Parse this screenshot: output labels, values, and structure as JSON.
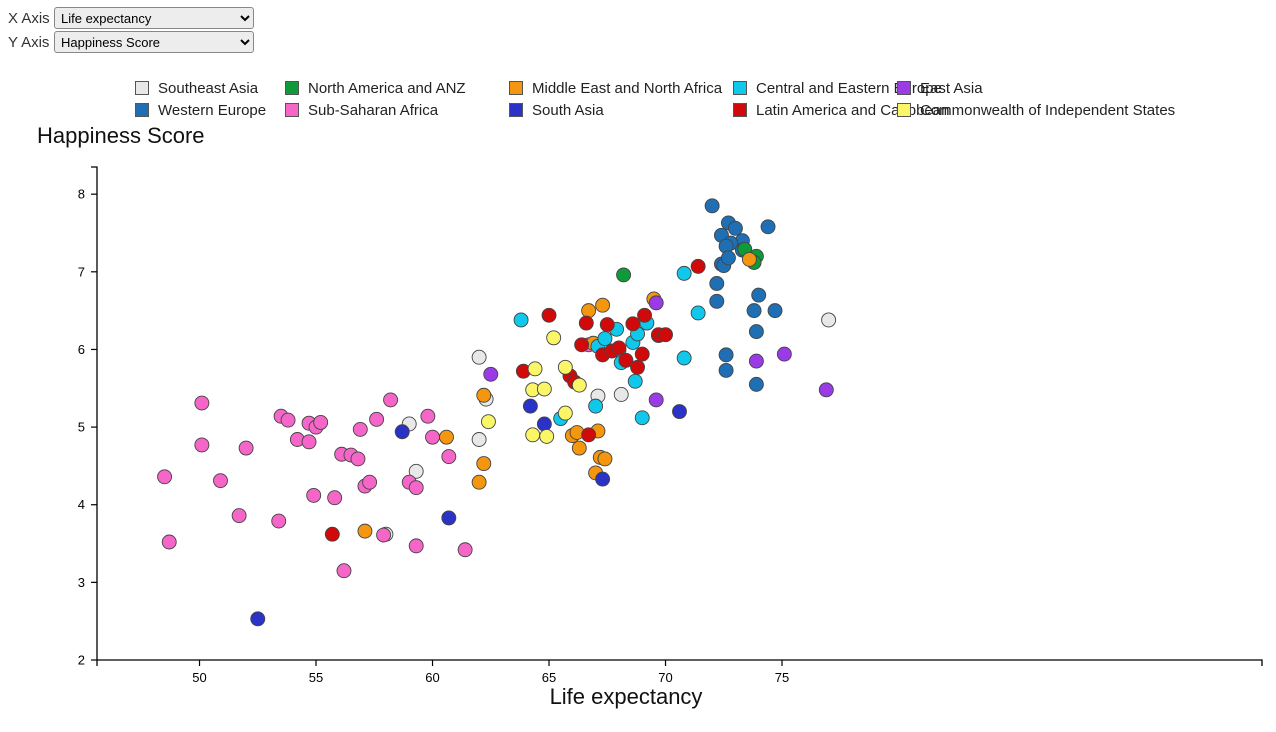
{
  "controls": {
    "x_label": "X Axis",
    "y_label": "Y Axis",
    "x_selected": "Life expectancy",
    "y_selected": "Happiness Score"
  },
  "legend": {
    "items": [
      {
        "label": "Southeast Asia",
        "color": "#e8e8e8"
      },
      {
        "label": "Western Europe",
        "color": "#1f6fb5"
      },
      {
        "label": "North America and ANZ",
        "color": "#0f9a3a"
      },
      {
        "label": "Sub-Saharan Africa",
        "color": "#f566c8"
      },
      {
        "label": "Middle East and North Africa",
        "color": "#f5960f"
      },
      {
        "label": "South Asia",
        "color": "#2a32c8"
      },
      {
        "label": "Central and Eastern Europe",
        "color": "#10c8eb"
      },
      {
        "label": "Latin America and Caribbean",
        "color": "#d00a0a"
      },
      {
        "label": "East Asia",
        "color": "#9b3be8"
      },
      {
        "label": "Commonwealth of Independent States",
        "color": "#fbf568"
      }
    ]
  },
  "chart_data": {
    "type": "scatter",
    "title": "",
    "xlabel": "Life expectancy",
    "ylabel": "Happiness Score",
    "xlim": [
      45.6,
      95.6
    ],
    "ylim": [
      2,
      8.35
    ],
    "xticks": [
      50,
      55,
      60,
      65,
      70,
      75
    ],
    "yticks": [
      2,
      3,
      4,
      5,
      6,
      7,
      8
    ],
    "grid": false,
    "legend_position": "top",
    "series": [
      {
        "name": "Southeast Asia",
        "color": "#e8e8e8",
        "points": [
          [
            62.0,
            5.9
          ],
          [
            62.3,
            5.36
          ],
          [
            62.0,
            4.84
          ],
          [
            59.0,
            5.04
          ],
          [
            59.3,
            4.43
          ],
          [
            67.1,
            5.4
          ],
          [
            68.1,
            5.42
          ],
          [
            77.0,
            6.38
          ],
          [
            69.7,
            6.18
          ],
          [
            58.0,
            3.62
          ]
        ]
      },
      {
        "name": "Western Europe",
        "color": "#1f6fb5",
        "points": [
          [
            72.0,
            7.85
          ],
          [
            72.7,
            7.63
          ],
          [
            73.0,
            7.56
          ],
          [
            74.4,
            7.58
          ],
          [
            72.4,
            7.47
          ],
          [
            73.3,
            7.4
          ],
          [
            72.8,
            7.37
          ],
          [
            72.6,
            7.33
          ],
          [
            73.3,
            7.28
          ],
          [
            72.4,
            7.1
          ],
          [
            72.5,
            7.08
          ],
          [
            72.2,
            6.85
          ],
          [
            74.0,
            6.7
          ],
          [
            72.2,
            6.62
          ],
          [
            73.8,
            6.5
          ],
          [
            74.7,
            6.5
          ],
          [
            73.9,
            6.23
          ],
          [
            72.6,
            5.93
          ],
          [
            72.6,
            5.73
          ],
          [
            73.9,
            5.55
          ],
          [
            72.7,
            7.18
          ]
        ]
      },
      {
        "name": "North America and ANZ",
        "color": "#0f9a3a",
        "points": [
          [
            73.4,
            7.29
          ],
          [
            73.9,
            7.2
          ],
          [
            73.8,
            7.12
          ],
          [
            68.2,
            6.96
          ]
        ]
      },
      {
        "name": "Sub-Saharan Africa",
        "color": "#f566c8",
        "points": [
          [
            48.5,
            4.36
          ],
          [
            48.7,
            3.52
          ],
          [
            50.1,
            5.31
          ],
          [
            50.1,
            4.77
          ],
          [
            50.9,
            4.31
          ],
          [
            51.7,
            3.86
          ],
          [
            52.0,
            4.73
          ],
          [
            53.4,
            3.79
          ],
          [
            53.5,
            5.14
          ],
          [
            53.8,
            5.09
          ],
          [
            54.2,
            4.84
          ],
          [
            54.7,
            5.05
          ],
          [
            54.7,
            4.81
          ],
          [
            55.0,
            5.0
          ],
          [
            55.2,
            5.06
          ],
          [
            54.9,
            4.12
          ],
          [
            55.8,
            4.09
          ],
          [
            56.1,
            4.65
          ],
          [
            56.5,
            4.64
          ],
          [
            56.8,
            4.59
          ],
          [
            56.9,
            4.97
          ],
          [
            57.1,
            4.24
          ],
          [
            57.3,
            4.29
          ],
          [
            57.6,
            5.1
          ],
          [
            58.2,
            5.35
          ],
          [
            56.2,
            3.15
          ],
          [
            57.9,
            3.61
          ],
          [
            59.0,
            4.29
          ],
          [
            59.3,
            4.22
          ],
          [
            59.3,
            3.47
          ],
          [
            59.8,
            5.14
          ],
          [
            60.0,
            4.87
          ],
          [
            60.7,
            4.62
          ],
          [
            61.4,
            3.42
          ],
          [
            66.7,
            6.06
          ]
        ]
      },
      {
        "name": "Middle East and North Africa",
        "color": "#f5960f",
        "points": [
          [
            57.1,
            3.66
          ],
          [
            60.6,
            4.87
          ],
          [
            62.2,
            5.41
          ],
          [
            62.2,
            4.53
          ],
          [
            62.0,
            4.29
          ],
          [
            66.0,
            4.89
          ],
          [
            66.2,
            4.93
          ],
          [
            66.3,
            4.73
          ],
          [
            67.1,
            4.95
          ],
          [
            67.0,
            4.41
          ],
          [
            67.2,
            4.61
          ],
          [
            67.4,
            4.59
          ],
          [
            66.7,
            6.5
          ],
          [
            67.3,
            6.57
          ],
          [
            66.9,
            6.08
          ],
          [
            69.5,
            6.65
          ],
          [
            73.6,
            7.16
          ]
        ]
      },
      {
        "name": "South Asia",
        "color": "#2a32c8",
        "points": [
          [
            52.5,
            2.53
          ],
          [
            58.7,
            4.94
          ],
          [
            60.7,
            3.83
          ],
          [
            64.2,
            5.27
          ],
          [
            64.8,
            5.04
          ],
          [
            67.3,
            4.33
          ],
          [
            70.6,
            5.2
          ]
        ]
      },
      {
        "name": "Central and Eastern Europe",
        "color": "#10c8eb",
        "points": [
          [
            63.8,
            6.38
          ],
          [
            65.5,
            5.11
          ],
          [
            67.0,
            5.27
          ],
          [
            67.1,
            6.04
          ],
          [
            67.4,
            6.14
          ],
          [
            67.9,
            6.26
          ],
          [
            68.0,
            5.99
          ],
          [
            68.1,
            5.83
          ],
          [
            68.6,
            6.09
          ],
          [
            68.7,
            5.59
          ],
          [
            68.8,
            6.2
          ],
          [
            69.2,
            6.34
          ],
          [
            69.0,
            5.12
          ],
          [
            69.7,
            6.18
          ],
          [
            70.8,
            6.98
          ],
          [
            71.4,
            6.47
          ],
          [
            70.8,
            5.89
          ]
        ]
      },
      {
        "name": "Latin America and Caribbean",
        "color": "#d00a0a",
        "points": [
          [
            55.7,
            3.62
          ],
          [
            63.9,
            5.72
          ],
          [
            65.0,
            6.44
          ],
          [
            65.9,
            5.66
          ],
          [
            66.1,
            5.58
          ],
          [
            66.4,
            6.06
          ],
          [
            66.6,
            6.34
          ],
          [
            66.7,
            4.9
          ],
          [
            67.3,
            5.93
          ],
          [
            67.5,
            6.32
          ],
          [
            67.7,
            5.98
          ],
          [
            68.0,
            6.02
          ],
          [
            68.3,
            5.86
          ],
          [
            68.6,
            6.33
          ],
          [
            68.8,
            5.77
          ],
          [
            69.0,
            5.94
          ],
          [
            69.1,
            6.44
          ],
          [
            69.7,
            6.19
          ],
          [
            70.0,
            6.19
          ],
          [
            71.4,
            7.07
          ]
        ]
      },
      {
        "name": "East Asia",
        "color": "#9b3be8",
        "points": [
          [
            62.5,
            5.68
          ],
          [
            69.6,
            6.6
          ],
          [
            69.6,
            5.35
          ],
          [
            73.9,
            5.85
          ],
          [
            75.1,
            5.94
          ],
          [
            76.9,
            5.48
          ]
        ]
      },
      {
        "name": "Commonwealth of Independent States",
        "color": "#fbf568",
        "points": [
          [
            62.4,
            5.07
          ],
          [
            64.3,
            5.48
          ],
          [
            64.4,
            5.75
          ],
          [
            64.3,
            4.9
          ],
          [
            64.8,
            5.49
          ],
          [
            64.9,
            4.88
          ],
          [
            65.2,
            6.15
          ],
          [
            65.7,
            5.77
          ],
          [
            65.7,
            5.18
          ],
          [
            66.3,
            5.54
          ]
        ]
      }
    ]
  }
}
